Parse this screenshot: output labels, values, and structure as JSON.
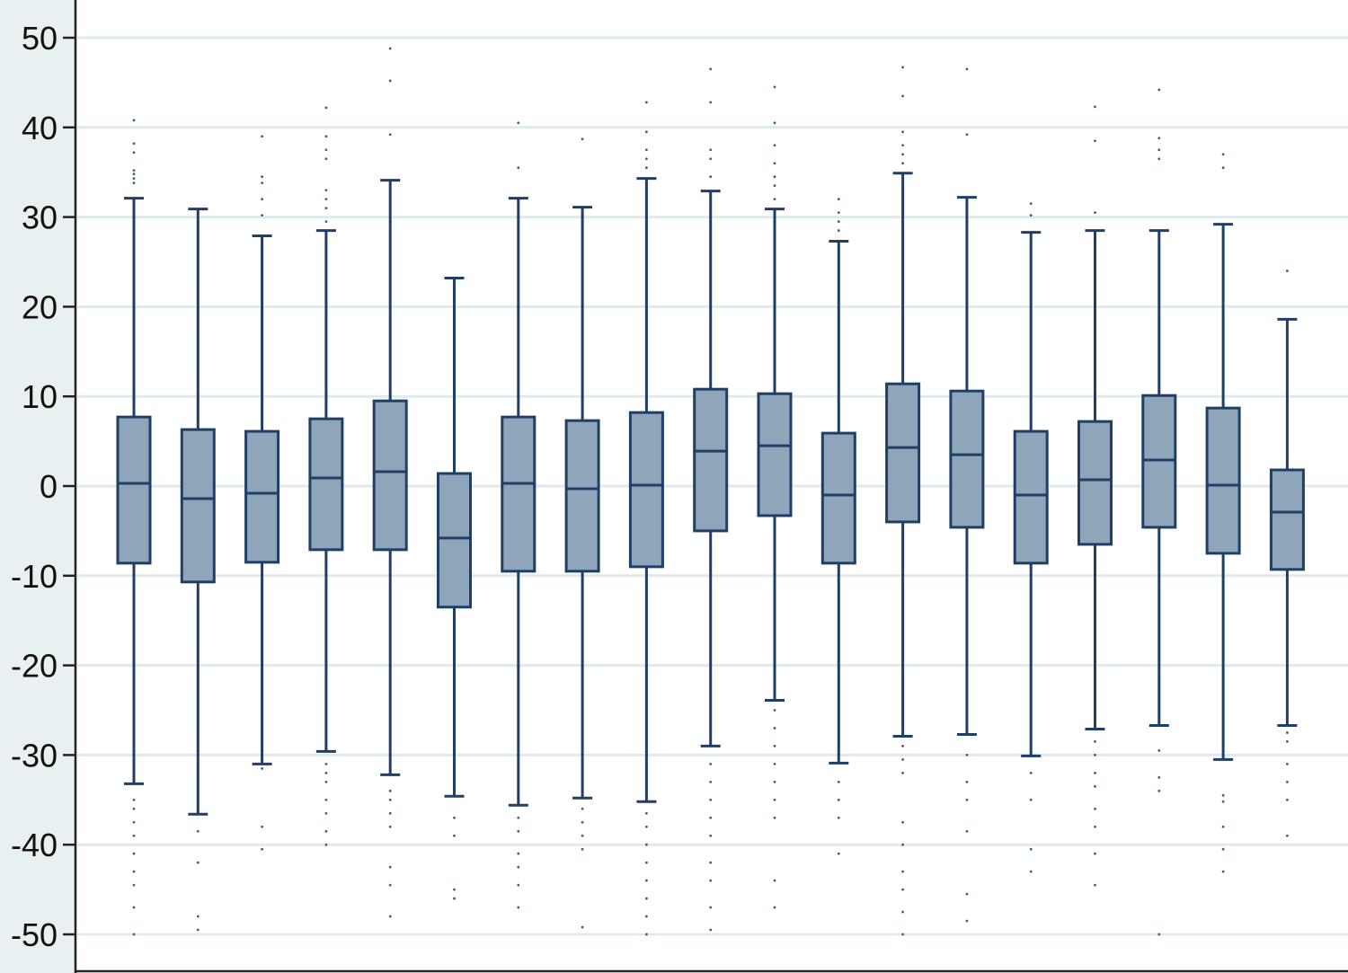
{
  "chart_data": {
    "type": "box",
    "title": "",
    "xlabel": "",
    "ylabel": "",
    "ylim": [
      -50,
      50
    ],
    "yticks": [
      "50",
      "40",
      "30",
      "20",
      "10",
      "0",
      "-10",
      "-20",
      "-30",
      "-40",
      "-50"
    ],
    "grid": true,
    "colors": {
      "box_fill": "#8fa5ba",
      "stroke": "#1f3f66",
      "outlier": "#3f5f80",
      "grid": "#dfeaec",
      "margin_bg": "#e8f0f2",
      "axis": "#222222"
    },
    "boxes": [
      {
        "whisker_high": 32.1,
        "q3": 7.7,
        "median": 0.3,
        "q1": -8.6,
        "whisker_low": -33.2,
        "outliers": [
          40.8,
          38.2,
          37.2,
          35.2,
          34.8,
          34.3,
          33.8,
          -35,
          -36,
          -37.5,
          -39,
          -41,
          -43,
          -44.5,
          -47,
          -50
        ]
      },
      {
        "whisker_high": 30.9,
        "q3": 6.3,
        "median": -1.4,
        "q1": -10.7,
        "whisker_low": -36.6,
        "outliers": [
          -38.5,
          -42,
          -48,
          -49.5
        ]
      },
      {
        "whisker_high": 27.9,
        "q3": 6.1,
        "median": -0.8,
        "q1": -8.5,
        "whisker_low": -31.0,
        "outliers": [
          39,
          34.5,
          33.8,
          32,
          30.2,
          -31.5,
          -38,
          -40.5
        ]
      },
      {
        "whisker_high": 28.5,
        "q3": 7.5,
        "median": 0.9,
        "q1": -7.1,
        "whisker_low": -29.6,
        "outliers": [
          42.2,
          39,
          37.5,
          36.5,
          33,
          32,
          31,
          29.5,
          -31,
          -32,
          -33,
          -35,
          -36.5,
          -38.5,
          -40
        ]
      },
      {
        "whisker_high": 34.1,
        "q3": 9.5,
        "median": 1.6,
        "q1": -7.1,
        "whisker_low": -32.2,
        "outliers": [
          48.8,
          45.2,
          39.2,
          -34,
          -35,
          -36.5,
          -38,
          -42.5,
          -44.5,
          -48
        ]
      },
      {
        "whisker_high": 23.2,
        "q3": 1.4,
        "median": -5.8,
        "q1": -13.5,
        "whisker_low": -34.6,
        "outliers": [
          -37,
          -39,
          -45,
          -46
        ]
      },
      {
        "whisker_high": 32.1,
        "q3": 7.7,
        "median": 0.3,
        "q1": -9.5,
        "whisker_low": -35.6,
        "outliers": [
          40.5,
          35.5,
          -37,
          -38.5,
          -41,
          -42.5,
          -44.5,
          -47
        ]
      },
      {
        "whisker_high": 31.1,
        "q3": 7.3,
        "median": -0.3,
        "q1": -9.5,
        "whisker_low": -34.8,
        "outliers": [
          38.7,
          -36,
          -37.5,
          -39,
          -40.5,
          -49.2
        ]
      },
      {
        "whisker_high": 34.3,
        "q3": 8.2,
        "median": 0.1,
        "q1": -9.0,
        "whisker_low": -35.2,
        "outliers": [
          42.8,
          39.5,
          37.5,
          36.5,
          35.5,
          -36.5,
          -38,
          -40,
          -42,
          -44,
          -46,
          -48,
          -50
        ]
      },
      {
        "whisker_high": 32.9,
        "q3": 10.8,
        "median": 3.9,
        "q1": -5.0,
        "whisker_low": -29.0,
        "outliers": [
          46.5,
          42.8,
          37.5,
          36.5,
          34.5,
          -31,
          -33,
          -35,
          -37,
          -39,
          -42,
          -44,
          -47,
          -49.5
        ]
      },
      {
        "whisker_high": 30.9,
        "q3": 10.3,
        "median": 4.5,
        "q1": -3.3,
        "whisker_low": -23.9,
        "outliers": [
          44.5,
          40.5,
          38,
          36,
          34.5,
          33.5,
          32,
          -25,
          -27,
          -29,
          -31,
          -33,
          -35,
          -37,
          -44,
          -47
        ]
      },
      {
        "whisker_high": 27.3,
        "q3": 5.9,
        "median": -1.0,
        "q1": -8.6,
        "whisker_low": -30.9,
        "outliers": [
          32,
          30.5,
          29.5,
          28.5,
          -33,
          -35,
          -37,
          -41
        ]
      },
      {
        "whisker_high": 34.9,
        "q3": 11.4,
        "median": 4.3,
        "q1": -4.0,
        "whisker_low": -27.9,
        "outliers": [
          46.7,
          43.5,
          39.5,
          38,
          37,
          36,
          -29,
          -30.5,
          -32,
          -37.5,
          -40,
          -43,
          -45,
          -47.5,
          -50
        ]
      },
      {
        "whisker_high": 32.2,
        "q3": 10.6,
        "median": 3.5,
        "q1": -4.6,
        "whisker_low": -27.7,
        "outliers": [
          46.5,
          39.2,
          -30,
          -33,
          -35,
          -38.5,
          -45.5,
          -48.5
        ]
      },
      {
        "whisker_high": 28.3,
        "q3": 6.1,
        "median": -1.0,
        "q1": -8.6,
        "whisker_low": -30.1,
        "outliers": [
          31.5,
          30.2,
          -32,
          -35,
          -40.5,
          -43
        ]
      },
      {
        "whisker_high": 28.5,
        "q3": 7.2,
        "median": 0.7,
        "q1": -6.5,
        "whisker_low": -27.1,
        "outliers": [
          42.3,
          38.5,
          30.5,
          -28.5,
          -30,
          -32,
          -33.5,
          -36,
          -38,
          -41,
          -44.5
        ]
      },
      {
        "whisker_high": 28.5,
        "q3": 10.1,
        "median": 2.9,
        "q1": -4.6,
        "whisker_low": -26.7,
        "outliers": [
          44.2,
          38.8,
          37.5,
          36.5,
          -29.5,
          -32.5,
          -34,
          -50
        ]
      },
      {
        "whisker_high": 29.2,
        "q3": 8.7,
        "median": 0.1,
        "q1": -7.5,
        "whisker_low": -30.5,
        "outliers": [
          37,
          35.5,
          -34.5,
          -35.2,
          -38,
          -40.5,
          -43
        ]
      },
      {
        "whisker_high": 18.6,
        "q3": 1.8,
        "median": -2.9,
        "q1": -9.3,
        "whisker_low": -26.7,
        "outliers": [
          24,
          -27.5,
          -28.5,
          -31,
          -33,
          -35,
          -39
        ]
      }
    ]
  }
}
